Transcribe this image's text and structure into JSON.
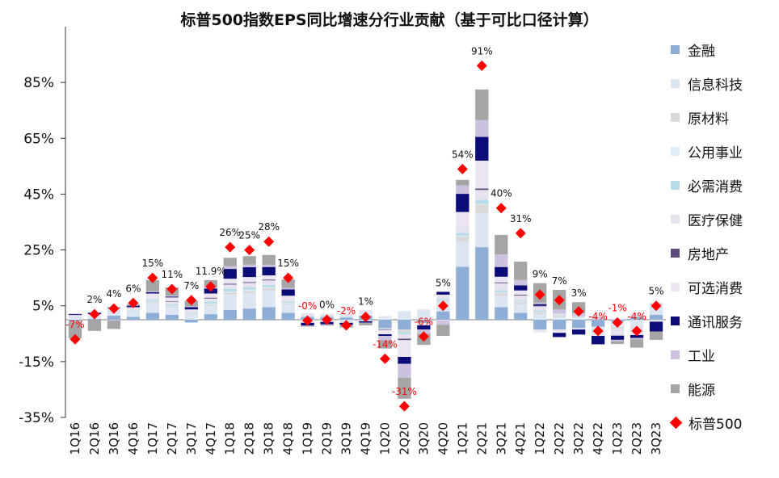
{
  "chart_data": {
    "type": "bar",
    "stacked": true,
    "title": "标普500指数EPS同比增速分行业贡献（基于可比口径计算）",
    "xlabel": "",
    "ylabel": "",
    "ylim": [
      -35,
      105
    ],
    "yticks": [
      -35,
      -15,
      5,
      25,
      45,
      65,
      85
    ],
    "ytick_labels": [
      "-35%",
      "-15%",
      "5%",
      "25%",
      "45%",
      "65%",
      "85%"
    ],
    "legend_position": "right",
    "categories": [
      "1Q16",
      "2Q16",
      "3Q16",
      "4Q16",
      "1Q17",
      "2Q17",
      "3Q17",
      "4Q17",
      "1Q18",
      "2Q18",
      "3Q18",
      "4Q18",
      "1Q19",
      "2Q19",
      "3Q19",
      "4Q19",
      "1Q20",
      "2Q20",
      "3Q20",
      "4Q20",
      "1Q21",
      "2Q21",
      "3Q21",
      "4Q21",
      "1Q22",
      "2Q22",
      "3Q22",
      "4Q22",
      "1Q23",
      "2Q23",
      "3Q23"
    ],
    "series": [
      {
        "name": "金融",
        "color": "#8eaed6",
        "values": [
          -0.5,
          0.3,
          1.5,
          1.0,
          2.5,
          1.8,
          -1.0,
          2.0,
          3.5,
          4.0,
          4.5,
          2.5,
          1.0,
          1.0,
          0.8,
          1.5,
          -3.0,
          -3.5,
          -0.8,
          3.0,
          19.0,
          26.0,
          4.5,
          2.5,
          -3.5,
          -3.5,
          -3.0,
          -2.5,
          -0.7,
          1.0,
          1.8
        ]
      },
      {
        "name": "信息科技",
        "color": "#dce6f3",
        "values": [
          0.5,
          0.8,
          1.0,
          1.8,
          3.5,
          2.5,
          1.8,
          3.0,
          5.5,
          5.5,
          6.0,
          3.0,
          -0.5,
          -0.3,
          -0.5,
          0.5,
          0.5,
          3.0,
          2.0,
          3.5,
          9.0,
          12.0,
          4.0,
          3.0,
          2.0,
          1.0,
          0.5,
          -1.5,
          -2.0,
          -2.5,
          2.0
        ]
      },
      {
        "name": "原材料",
        "color": "#d9d9d9",
        "values": [
          -0.2,
          0.0,
          0.2,
          0.2,
          0.5,
          0.5,
          0.3,
          0.6,
          0.8,
          0.8,
          0.8,
          0.4,
          -0.3,
          -0.3,
          -0.3,
          -0.2,
          -0.3,
          -1.0,
          0.2,
          0.5,
          1.8,
          3.2,
          1.2,
          0.8,
          0.8,
          0.5,
          0.0,
          -0.5,
          -0.5,
          -0.5,
          -0.2
        ]
      },
      {
        "name": "公用事业",
        "color": "#deedf7",
        "values": [
          0.2,
          0.1,
          0.2,
          0.1,
          0.1,
          0.2,
          0.1,
          0.2,
          0.3,
          0.4,
          0.3,
          0.2,
          0.3,
          0.1,
          0.2,
          0.2,
          0.2,
          0.1,
          0.2,
          0.1,
          0.3,
          0.3,
          0.2,
          0.2,
          0.1,
          -0.2,
          0.2,
          -0.3,
          0.2,
          0.2,
          0.2
        ]
      },
      {
        "name": "必需消费",
        "color": "#b8dde8",
        "values": [
          0.2,
          0.0,
          0.3,
          0.3,
          0.5,
          0.5,
          0.3,
          0.8,
          1.0,
          1.0,
          0.9,
          0.5,
          0.2,
          0.2,
          0.2,
          0.2,
          -0.2,
          -0.8,
          0.3,
          0.4,
          1.0,
          1.5,
          0.7,
          0.4,
          0.4,
          0.2,
          0.1,
          0.1,
          0.0,
          0.1,
          0.4
        ]
      },
      {
        "name": "医疗保健",
        "color": "#e6e2ee",
        "values": [
          0.5,
          0.5,
          0.8,
          0.6,
          0.8,
          1.0,
          0.8,
          1.0,
          1.5,
          1.5,
          1.6,
          1.0,
          0.8,
          0.8,
          0.9,
          0.8,
          0.6,
          -1.5,
          1.0,
          1.5,
          2.5,
          3.5,
          2.5,
          1.8,
          1.5,
          0.5,
          0.5,
          -0.5,
          -2.5,
          -2.5,
          -0.5
        ]
      },
      {
        "name": "房地产",
        "color": "#5d4a7e",
        "values": [
          0.0,
          0.0,
          0.0,
          0.0,
          0.0,
          0.2,
          0.0,
          0.3,
          0.3,
          0.3,
          0.3,
          0.0,
          0.0,
          0.0,
          0.0,
          0.0,
          -0.2,
          -0.5,
          -0.2,
          0.0,
          0.0,
          0.5,
          0.3,
          0.3,
          0.3,
          0.0,
          0.0,
          0.0,
          0.0,
          0.0,
          0.0
        ]
      },
      {
        "name": "可选消费",
        "color": "#ede6f2",
        "values": [
          0.3,
          0.3,
          0.2,
          0.5,
          1.5,
          1.3,
          0.4,
          1.5,
          1.8,
          1.8,
          1.5,
          1.0,
          -0.3,
          -0.2,
          -0.3,
          -0.3,
          -1.5,
          -6.0,
          -1.0,
          -0.3,
          5.0,
          10.0,
          2.0,
          1.5,
          -1.0,
          -1.0,
          -0.5,
          -0.5,
          0.5,
          1.0,
          1.0
        ]
      },
      {
        "name": "通讯服务",
        "color": "#0c0c78",
        "values": [
          0.3,
          0.5,
          0.2,
          0.5,
          0.5,
          0.3,
          0.8,
          1.8,
          3.5,
          3.5,
          3.0,
          2.3,
          -1.0,
          -0.8,
          -0.7,
          -0.5,
          -0.6,
          -2.5,
          -1.5,
          1.0,
          6.5,
          8.5,
          3.5,
          1.8,
          0.5,
          -1.5,
          -1.8,
          -3.0,
          -1.5,
          -1.0,
          -3.5
        ]
      },
      {
        "name": "工业",
        "color": "#ccc1de",
        "values": [
          0.2,
          0.0,
          -0.3,
          -0.3,
          0.3,
          0.3,
          0.3,
          0.5,
          1.0,
          1.0,
          0.8,
          0.5,
          -0.2,
          -0.2,
          0.0,
          0.1,
          -1.5,
          -5.0,
          -1.5,
          -1.5,
          3.0,
          6.0,
          4.5,
          2.0,
          0.5,
          1.5,
          1.0,
          1.0,
          -0.5,
          -0.5,
          0.5
        ]
      },
      {
        "name": "能源",
        "color": "#a5a5a5",
        "values": [
          -6.0,
          -4.0,
          -3.0,
          0.5,
          4.0,
          3.0,
          2.0,
          2.5,
          3.0,
          3.0,
          3.5,
          3.0,
          -0.2,
          -0.3,
          -1.0,
          -1.0,
          -3.0,
          -7.5,
          -4.0,
          -4.0,
          2.0,
          11.0,
          7.0,
          6.5,
          7.0,
          7.0,
          4.0,
          0.0,
          -1.0,
          -3.0,
          -3.0
        ]
      }
    ],
    "total": {
      "name": "标普500",
      "color": "#ff0000",
      "values": [
        -7,
        2,
        4,
        6,
        15,
        11,
        7,
        11.9,
        26,
        25,
        28,
        15,
        -0.3,
        0,
        -2,
        1,
        -14,
        -31,
        -6,
        5,
        54,
        91,
        40,
        31,
        9,
        7,
        3,
        -4,
        -1,
        -4,
        5
      ],
      "labels": [
        "-7%",
        "2%",
        "4%",
        "6%",
        "15%",
        "11%",
        "7%",
        "11.9%",
        "26%",
        "25%",
        "28%",
        "15%",
        "-0%",
        "0%",
        "-2%",
        "1%",
        "-14%",
        "-31%",
        "-6%",
        "5%",
        "54%",
        "91%",
        "40%",
        "31%",
        "9%",
        "7%",
        "3%",
        "-4%",
        "-1%",
        "-4%",
        "5%"
      ]
    }
  }
}
